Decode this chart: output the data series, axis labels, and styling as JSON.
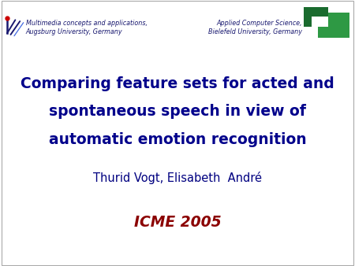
{
  "background_color": "#ffffff",
  "border_color": "#aaaaaa",
  "title_line1": "Comparing feature sets for acted and",
  "title_line2": "spontaneous speech in view of",
  "title_line3": "automatic emotion recognition",
  "title_color": "#00008B",
  "authors": "Thurid Vogt, Elisabeth  André",
  "authors_color": "#000080",
  "conference": "ICME 2005",
  "conference_color": "#8B0000",
  "left_header_line1": "Multimedia concepts and applications,",
  "left_header_line2": "Augsburg University, Germany",
  "left_header_color": "#191970",
  "right_header_line1": "Applied Computer Science,",
  "right_header_line2": "Bielefeld University, Germany",
  "right_header_color": "#191970",
  "logo_right_dark_green": "#1a6b2e",
  "logo_right_light_green": "#2e9944"
}
